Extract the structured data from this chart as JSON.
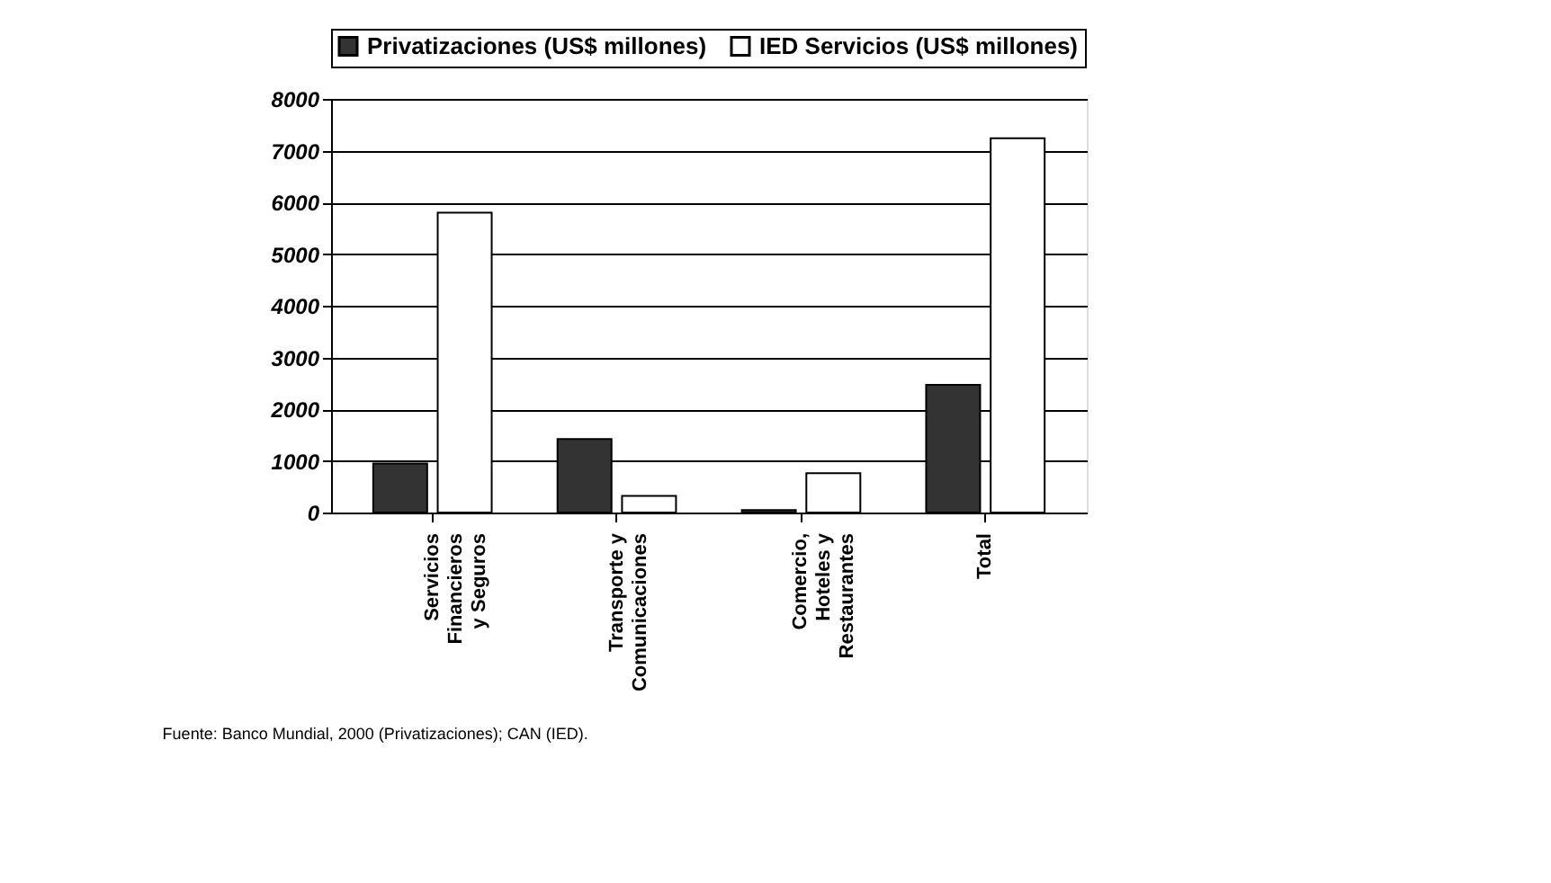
{
  "chart_data": {
    "type": "bar",
    "categories": [
      "Servicios Financieros y Seguros",
      "Transporte y Comunicaciones",
      "Comercio, Hoteles y Restaurantes",
      "Total"
    ],
    "series": [
      {
        "name": "Privatizaciones (US$ millones)",
        "color": "#333333",
        "values": [
          950,
          1420,
          50,
          2470
        ]
      },
      {
        "name": "IED Servicios (US$ millones)",
        "color": "#ffffff",
        "values": [
          5800,
          320,
          760,
          7240
        ]
      }
    ],
    "ylim": [
      0,
      8000
    ],
    "yticks": [
      0,
      1000,
      2000,
      3000,
      4000,
      5000,
      6000,
      7000,
      8000
    ],
    "grid": "y",
    "legend": "top",
    "annotations": [
      "Fuente: Banco Mundial, 2000 (Privatizaciones); CAN (IED)."
    ]
  }
}
